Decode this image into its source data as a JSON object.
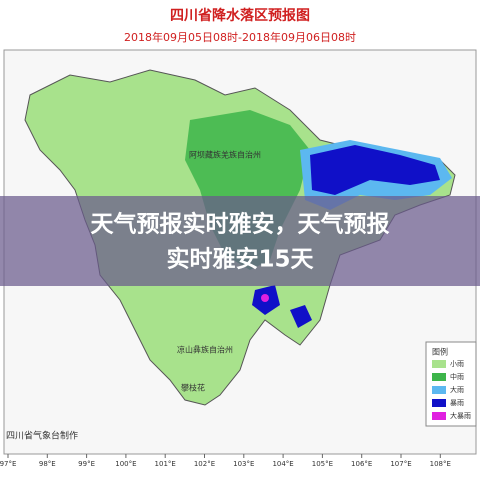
{
  "header": {
    "title": "四川省降水落区预报图",
    "subtitle": "2018年09月05日08时-2018年09月06日08时"
  },
  "overlay": {
    "line1": "天气预报实时雅安，天气预报",
    "line2": "实时雅安15天"
  },
  "map": {
    "labels": [
      "阿坝藏族羌族自治州",
      "凉山彝族自治州",
      "攀枝花"
    ],
    "longitudes": [
      "97°E",
      "98°E",
      "99°E",
      "100°E",
      "101°E",
      "102°E",
      "103°E",
      "104°E",
      "105°E",
      "106°E",
      "107°E",
      "108°E"
    ]
  },
  "legend": {
    "title": "图例",
    "items": [
      "小雨",
      "中雨",
      "大雨",
      "暴雨",
      "大暴雨"
    ]
  },
  "footer": {
    "credit": "四川省气象台制作"
  }
}
